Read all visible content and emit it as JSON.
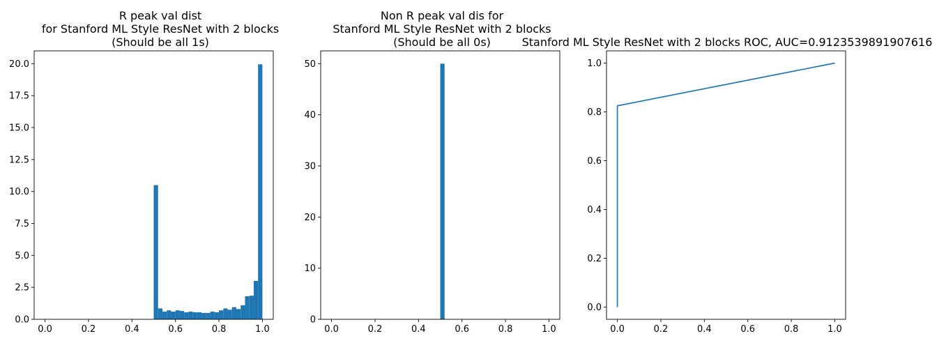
{
  "figure": {
    "background": "#ffffff",
    "bar_color": "#1f77b4",
    "line_color": "#1f77b4"
  },
  "chart_data": [
    {
      "type": "bar",
      "title_lines": [
        "R peak val dist",
        "for Stanford ML Style ResNet with 2 blocks",
        "(Should be all 1s)"
      ],
      "xlabel": "",
      "ylabel": "",
      "xlim": [
        -0.05,
        1.05
      ],
      "ylim": [
        0,
        21
      ],
      "xticks": [
        0.0,
        0.2,
        0.4,
        0.6,
        0.8,
        1.0
      ],
      "xtick_labels": [
        "0.0",
        "0.2",
        "0.4",
        "0.6",
        "0.8",
        "1.0"
      ],
      "yticks": [
        0,
        2.5,
        5,
        7.5,
        10,
        12.5,
        15,
        17.5,
        20
      ],
      "ytick_labels": [
        "0.0",
        "2.5",
        "5.0",
        "7.5",
        "10.0",
        "12.5",
        "15.0",
        "17.5",
        "20.0"
      ],
      "bin_width": 0.02,
      "bin_starts": [
        0.5,
        0.52,
        0.54,
        0.56,
        0.58,
        0.6,
        0.62,
        0.64,
        0.66,
        0.68,
        0.7,
        0.72,
        0.74,
        0.76,
        0.78,
        0.8,
        0.82,
        0.84,
        0.86,
        0.88,
        0.9,
        0.92,
        0.94,
        0.96,
        0.98
      ],
      "values": [
        10.5,
        0.85,
        0.6,
        0.7,
        0.6,
        0.7,
        0.65,
        0.55,
        0.6,
        0.55,
        0.55,
        0.5,
        0.5,
        0.6,
        0.55,
        0.7,
        0.85,
        0.75,
        0.95,
        0.8,
        1.1,
        1.8,
        1.85,
        3.0,
        19.95
      ]
    },
    {
      "type": "bar",
      "title_lines": [
        "Non R peak val dis for",
        "Stanford ML Style ResNet with 2 blocks",
        "(Should be all 0s)"
      ],
      "xlabel": "",
      "ylabel": "",
      "xlim": [
        -0.05,
        1.05
      ],
      "ylim": [
        0,
        52.5
      ],
      "xticks": [
        0.0,
        0.2,
        0.4,
        0.6,
        0.8,
        1.0
      ],
      "xtick_labels": [
        "0.0",
        "0.2",
        "0.4",
        "0.6",
        "0.8",
        "1.0"
      ],
      "yticks": [
        0,
        10,
        20,
        30,
        40,
        50
      ],
      "ytick_labels": [
        "0",
        "10",
        "20",
        "30",
        "40",
        "50"
      ],
      "bin_width": 0.02,
      "bin_starts": [
        0.5
      ],
      "values": [
        50
      ]
    },
    {
      "type": "line",
      "title_lines": [
        "Stanford ML Style ResNet with 2 blocks ROC, AUC=0.9123539891907616"
      ],
      "xlabel": "",
      "ylabel": "",
      "xlim": [
        -0.05,
        1.05
      ],
      "ylim": [
        -0.05,
        1.05
      ],
      "xticks": [
        0.0,
        0.2,
        0.4,
        0.6,
        0.8,
        1.0
      ],
      "xtick_labels": [
        "0.0",
        "0.2",
        "0.4",
        "0.6",
        "0.8",
        "1.0"
      ],
      "yticks": [
        0.0,
        0.2,
        0.4,
        0.6,
        0.8,
        1.0
      ],
      "ytick_labels": [
        "0.0",
        "0.2",
        "0.4",
        "0.6",
        "0.8",
        "1.0"
      ],
      "series": [
        {
          "x": [
            0.0,
            0.0,
            1.0
          ],
          "y": [
            0.0,
            0.825,
            1.0
          ]
        }
      ]
    }
  ]
}
